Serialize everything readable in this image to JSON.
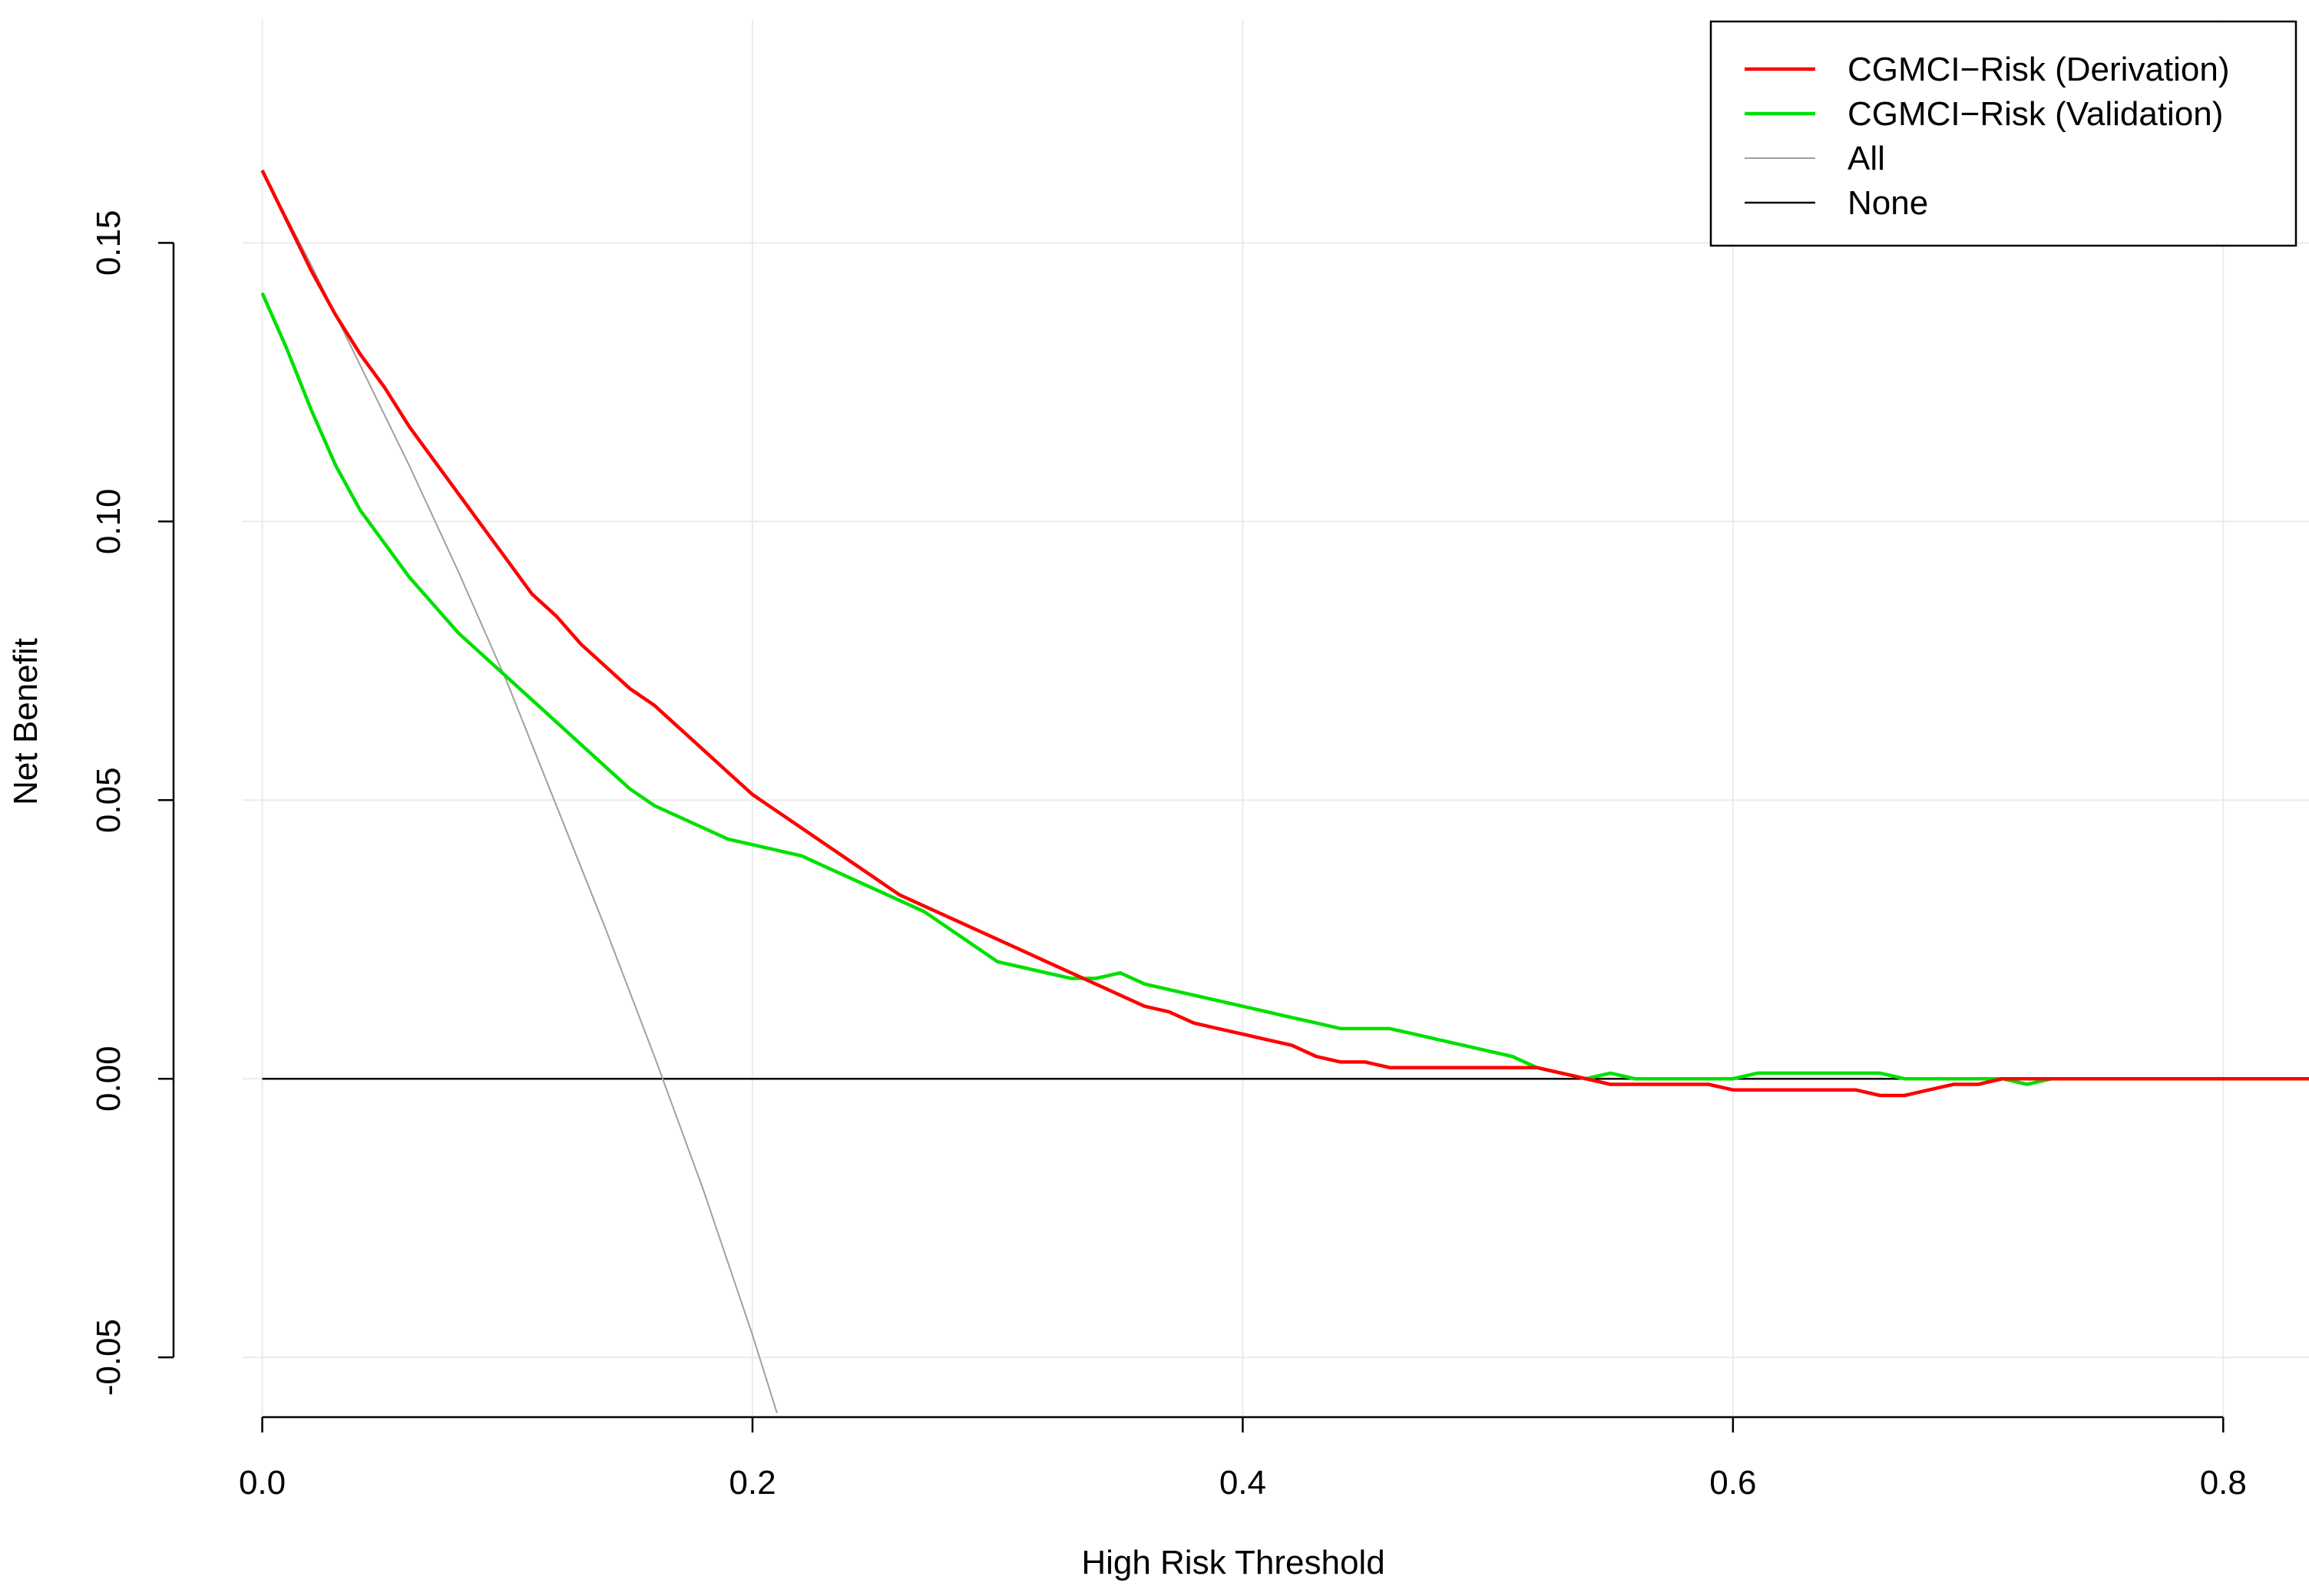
{
  "chart_data": {
    "type": "line",
    "title": "",
    "xlabel": "High Risk Threshold",
    "ylabel": "Net Benefit",
    "xlim": [
      -0.008,
      0.835
    ],
    "ylim": [
      -0.061,
      0.19
    ],
    "x_ticks": [
      {
        "value": 0.0,
        "label": "0.0"
      },
      {
        "value": 0.2,
        "label": "0.2"
      },
      {
        "value": 0.4,
        "label": "0.4"
      },
      {
        "value": 0.6,
        "label": "0.6"
      },
      {
        "value": 0.8,
        "label": "0.8"
      }
    ],
    "y_ticks": [
      {
        "value": -0.05,
        "label": "-0.05"
      },
      {
        "value": 0.0,
        "label": "0.00"
      },
      {
        "value": 0.05,
        "label": "0.05"
      },
      {
        "value": 0.1,
        "label": "0.10"
      },
      {
        "value": 0.15,
        "label": "0.15"
      }
    ],
    "grid": true,
    "legend_position": "top-right",
    "series": [
      {
        "name": "CGMCI−Risk (Derivation)",
        "color": "#ff0000",
        "x": [
          0.0,
          0.01,
          0.02,
          0.03,
          0.04,
          0.05,
          0.06,
          0.07,
          0.08,
          0.09,
          0.1,
          0.11,
          0.12,
          0.13,
          0.14,
          0.15,
          0.16,
          0.17,
          0.18,
          0.19,
          0.2,
          0.21,
          0.22,
          0.23,
          0.24,
          0.25,
          0.26,
          0.27,
          0.28,
          0.29,
          0.3,
          0.31,
          0.32,
          0.33,
          0.34,
          0.35,
          0.36,
          0.37,
          0.38,
          0.39,
          0.4,
          0.41,
          0.42,
          0.43,
          0.44,
          0.45,
          0.46,
          0.47,
          0.48,
          0.49,
          0.5,
          0.51,
          0.52,
          0.53,
          0.54,
          0.55,
          0.56,
          0.57,
          0.58,
          0.59,
          0.6,
          0.61,
          0.62,
          0.63,
          0.64,
          0.65,
          0.66,
          0.67,
          0.68,
          0.69,
          0.7,
          0.71,
          0.72,
          0.73,
          0.74,
          0.75,
          0.8,
          0.835
        ],
        "y": [
          0.163,
          0.154,
          0.145,
          0.137,
          0.13,
          0.124,
          0.117,
          0.111,
          0.105,
          0.099,
          0.093,
          0.087,
          0.083,
          0.078,
          0.074,
          0.07,
          0.067,
          0.063,
          0.059,
          0.055,
          0.051,
          0.048,
          0.045,
          0.042,
          0.039,
          0.036,
          0.033,
          0.031,
          0.029,
          0.027,
          0.025,
          0.023,
          0.021,
          0.019,
          0.017,
          0.015,
          0.013,
          0.012,
          0.01,
          0.009,
          0.008,
          0.007,
          0.006,
          0.004,
          0.003,
          0.003,
          0.002,
          0.002,
          0.002,
          0.002,
          0.002,
          0.002,
          0.002,
          0.001,
          0.0,
          -0.001,
          -0.001,
          -0.001,
          -0.001,
          -0.001,
          -0.002,
          -0.002,
          -0.002,
          -0.002,
          -0.002,
          -0.002,
          -0.003,
          -0.003,
          -0.002,
          -0.001,
          -0.001,
          0.0,
          0.0,
          0.0,
          0.0,
          0.0,
          0.0,
          0.0
        ]
      },
      {
        "name": "CGMCI−Risk (Validation)",
        "color": "#00e000",
        "x": [
          0.0,
          0.01,
          0.02,
          0.03,
          0.04,
          0.05,
          0.06,
          0.07,
          0.08,
          0.09,
          0.1,
          0.11,
          0.12,
          0.13,
          0.14,
          0.15,
          0.16,
          0.17,
          0.18,
          0.19,
          0.2,
          0.21,
          0.22,
          0.23,
          0.24,
          0.25,
          0.26,
          0.27,
          0.28,
          0.29,
          0.3,
          0.31,
          0.32,
          0.33,
          0.34,
          0.35,
          0.36,
          0.37,
          0.38,
          0.39,
          0.4,
          0.41,
          0.42,
          0.43,
          0.44,
          0.45,
          0.46,
          0.47,
          0.48,
          0.49,
          0.5,
          0.51,
          0.52,
          0.53,
          0.54,
          0.55,
          0.56,
          0.57,
          0.58,
          0.59,
          0.6,
          0.61,
          0.62,
          0.63,
          0.64,
          0.65,
          0.66,
          0.67,
          0.68,
          0.69,
          0.7,
          0.71,
          0.72,
          0.73,
          0.74,
          0.75,
          0.8,
          0.835
        ],
        "y": [
          0.141,
          0.131,
          0.12,
          0.11,
          0.102,
          0.096,
          0.09,
          0.085,
          0.08,
          0.076,
          0.072,
          0.068,
          0.064,
          0.06,
          0.056,
          0.052,
          0.049,
          0.047,
          0.045,
          0.043,
          0.042,
          0.041,
          0.04,
          0.038,
          0.036,
          0.034,
          0.032,
          0.03,
          0.027,
          0.024,
          0.021,
          0.02,
          0.019,
          0.018,
          0.018,
          0.019,
          0.017,
          0.016,
          0.015,
          0.014,
          0.013,
          0.012,
          0.011,
          0.01,
          0.009,
          0.009,
          0.009,
          0.008,
          0.007,
          0.006,
          0.005,
          0.004,
          0.002,
          0.001,
          0.0,
          0.001,
          0.0,
          0.0,
          0.0,
          0.0,
          0.0,
          0.001,
          0.001,
          0.001,
          0.001,
          0.001,
          0.001,
          0.0,
          0.0,
          0.0,
          0.0,
          0.0,
          -0.001,
          0.0,
          0.0,
          0.0,
          0.0,
          0.0
        ]
      },
      {
        "name": "All",
        "color": "#a0a0a0",
        "x": [
          0.0,
          0.02,
          0.04,
          0.06,
          0.08,
          0.1,
          0.12,
          0.14,
          0.16,
          0.18,
          0.2,
          0.21
        ],
        "y": [
          0.163,
          0.146,
          0.128,
          0.11,
          0.091,
          0.071,
          0.049,
          0.027,
          0.004,
          -0.02,
          -0.046,
          -0.06
        ]
      },
      {
        "name": "None",
        "color": "#000000",
        "x": [
          0.0,
          0.835
        ],
        "y": [
          0.0,
          0.0
        ]
      }
    ]
  }
}
